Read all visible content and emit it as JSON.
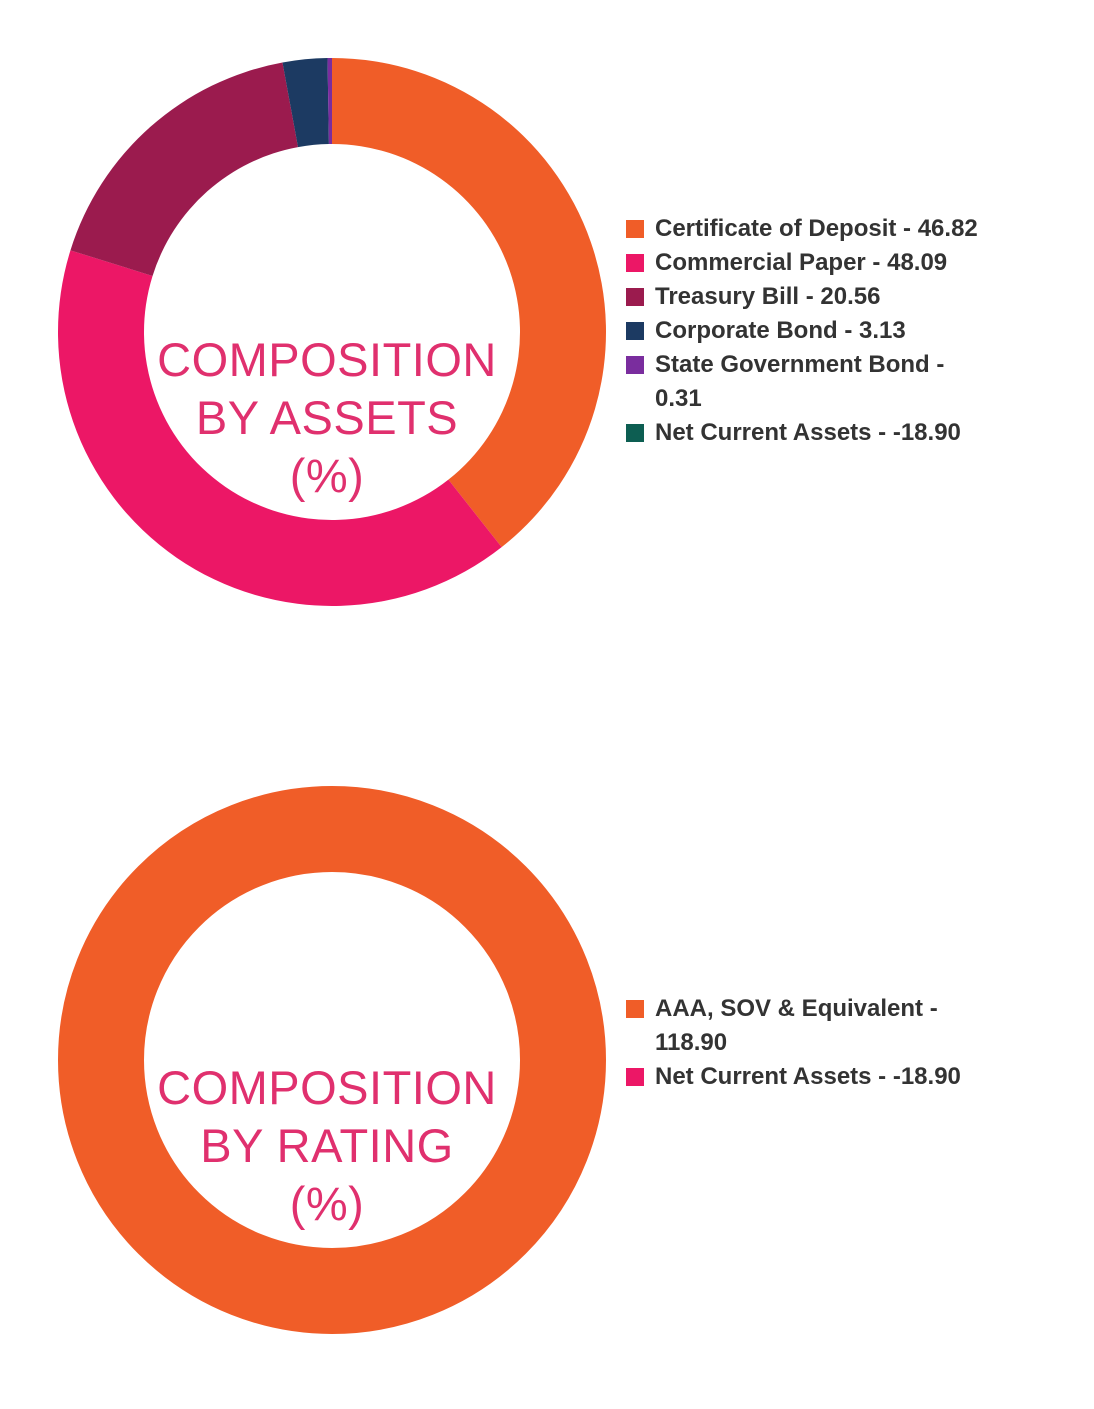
{
  "charts": [
    {
      "center_label": [
        "COMPOSITION",
        "BY ASSETS",
        "(%)"
      ],
      "legend": [
        {
          "text": "Certificate of Deposit - 46.82",
          "color": "#f05d28"
        },
        {
          "text": "Commercial Paper - 48.09",
          "color": "#ec1766"
        },
        {
          "text": "Treasury Bill - 20.56",
          "color": "#9b1b4e"
        },
        {
          "text": "Corporate Bond - 3.13",
          "color": "#1c3a62"
        },
        {
          "text": "State Government Bond - 0.31",
          "color": "#7a2d9e"
        },
        {
          "text": "Net Current Assets - -18.90",
          "color": "#0d5e52"
        }
      ]
    },
    {
      "center_label": [
        "COMPOSITION",
        "BY RATING",
        "(%)"
      ],
      "legend": [
        {
          "text": "AAA, SOV & Equivalent - 118.90",
          "color": "#f05d28"
        },
        {
          "text": "Net Current Assets - -18.90",
          "color": "#ec1766"
        }
      ]
    }
  ],
  "chart_data": [
    {
      "type": "pie",
      "title": "COMPOSITION BY ASSETS (%)",
      "categories": [
        "Certificate of Deposit",
        "Commercial Paper",
        "Treasury Bill",
        "Corporate Bond",
        "State Government Bond",
        "Net Current Assets"
      ],
      "values": [
        46.82,
        48.09,
        20.56,
        3.13,
        0.31,
        -18.9
      ],
      "colors": [
        "#f05d28",
        "#ec1766",
        "#9b1b4e",
        "#1c3a62",
        "#7a2d9e",
        "#0d5e52"
      ],
      "legend": "right"
    },
    {
      "type": "pie",
      "title": "COMPOSITION BY RATING (%)",
      "categories": [
        "AAA, SOV & Equivalent",
        "Net Current Assets"
      ],
      "values": [
        118.9,
        -18.9
      ],
      "colors": [
        "#f05d28",
        "#ec1766"
      ],
      "legend": "right"
    }
  ]
}
